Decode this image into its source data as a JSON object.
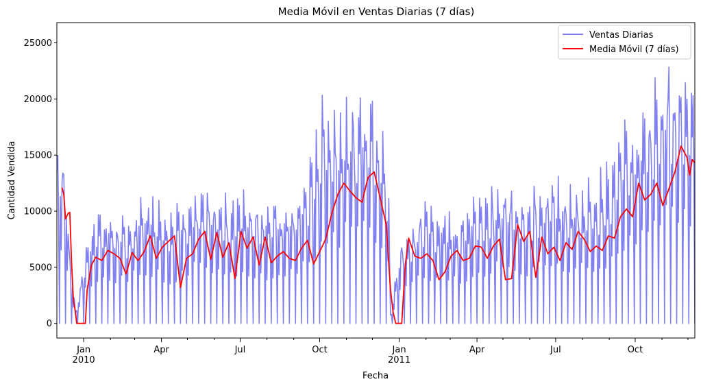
{
  "chart_data": {
    "type": "line",
    "title": "Media Móvil en Ventas Diarias (7 días)",
    "xlabel": "Fecha",
    "ylabel": "Cantidad Vendida",
    "xlim": [
      "2009-12-01",
      "2011-12-09"
    ],
    "ylim": [
      -1300,
      26800
    ],
    "yticks": [
      0,
      5000,
      10000,
      15000,
      20000,
      25000
    ],
    "xticks_major": [
      {
        "date": "2010-01-01",
        "label": "Jan",
        "year": "2010"
      },
      {
        "date": "2010-04-01",
        "label": "Apr",
        "year": ""
      },
      {
        "date": "2010-07-01",
        "label": "Jul",
        "year": ""
      },
      {
        "date": "2010-10-01",
        "label": "Oct",
        "year": ""
      },
      {
        "date": "2011-01-01",
        "label": "Jan",
        "year": "2011"
      },
      {
        "date": "2011-04-01",
        "label": "Apr",
        "year": ""
      },
      {
        "date": "2011-07-01",
        "label": "Jul",
        "year": ""
      },
      {
        "date": "2011-10-01",
        "label": "Oct",
        "year": ""
      }
    ],
    "xticks_minor": [
      "2010-02-01",
      "2010-03-01",
      "2010-05-01",
      "2010-06-01",
      "2010-08-01",
      "2010-09-01",
      "2010-11-01",
      "2010-12-01",
      "2011-02-01",
      "2011-03-01",
      "2011-05-01",
      "2011-06-01",
      "2011-08-01",
      "2011-09-01",
      "2011-11-01",
      "2011-12-01"
    ],
    "grid": false,
    "legend_position": "top-right",
    "series": [
      {
        "name": "Ventas Diarias",
        "color": "#8080f0",
        "style": "weekly-cycle",
        "level_points": [
          [
            "2009-12-01",
            13000
          ],
          [
            "2009-12-10",
            11000
          ],
          [
            "2009-12-17",
            4500
          ],
          [
            "2009-12-23",
            800
          ],
          [
            "2010-01-04",
            5500
          ],
          [
            "2010-01-20",
            7800
          ],
          [
            "2010-02-15",
            6800
          ],
          [
            "2010-03-15",
            8500
          ],
          [
            "2010-04-10",
            7500
          ],
          [
            "2010-05-10",
            9000
          ],
          [
            "2010-06-10",
            8000
          ],
          [
            "2010-07-10",
            8800
          ],
          [
            "2010-08-10",
            8000
          ],
          [
            "2010-09-05",
            8500
          ],
          [
            "2010-09-20",
            10500
          ],
          [
            "2010-10-05",
            14500
          ],
          [
            "2010-11-05",
            14500
          ],
          [
            "2010-11-25",
            16000
          ],
          [
            "2010-12-10",
            14000
          ],
          [
            "2010-12-20",
            9000
          ],
          [
            "2010-12-22",
            600
          ],
          [
            "2011-01-04",
            6000
          ],
          [
            "2011-02-01",
            7800
          ],
          [
            "2011-03-01",
            7200
          ],
          [
            "2011-04-01",
            8200
          ],
          [
            "2011-05-01",
            9000
          ],
          [
            "2011-06-01",
            8800
          ],
          [
            "2011-07-01",
            9200
          ],
          [
            "2011-08-01",
            9000
          ],
          [
            "2011-09-01",
            10200
          ],
          [
            "2011-09-20",
            13000
          ],
          [
            "2011-10-15",
            14500
          ],
          [
            "2011-11-10",
            17500
          ],
          [
            "2011-12-09",
            17000
          ]
        ]
      },
      {
        "name": "Media Móvil (7 días)",
        "color": "#ff0000",
        "points": [
          [
            "2009-12-07",
            12100
          ],
          [
            "2009-12-09",
            11500
          ],
          [
            "2009-12-11",
            9300
          ],
          [
            "2009-12-14",
            9800
          ],
          [
            "2009-12-16",
            9900
          ],
          [
            "2009-12-18",
            5500
          ],
          [
            "2009-12-20",
            2200
          ],
          [
            "2009-12-22",
            1200
          ],
          [
            "2009-12-24",
            0
          ],
          [
            "2010-01-03",
            0
          ],
          [
            "2010-01-05",
            3000
          ],
          [
            "2010-01-10",
            5200
          ],
          [
            "2010-01-15",
            5900
          ],
          [
            "2010-01-22",
            5600
          ],
          [
            "2010-01-29",
            6500
          ],
          [
            "2010-02-05",
            6200
          ],
          [
            "2010-02-12",
            5800
          ],
          [
            "2010-02-19",
            4400
          ],
          [
            "2010-02-26",
            6300
          ],
          [
            "2010-03-05",
            5600
          ],
          [
            "2010-03-12",
            6400
          ],
          [
            "2010-03-19",
            7800
          ],
          [
            "2010-03-26",
            5800
          ],
          [
            "2010-04-02",
            6800
          ],
          [
            "2010-04-09",
            7300
          ],
          [
            "2010-04-16",
            7800
          ],
          [
            "2010-04-23",
            3200
          ],
          [
            "2010-04-30",
            5800
          ],
          [
            "2010-05-07",
            6200
          ],
          [
            "2010-05-14",
            7500
          ],
          [
            "2010-05-21",
            8200
          ],
          [
            "2010-05-28",
            5700
          ],
          [
            "2010-06-04",
            8100
          ],
          [
            "2010-06-11",
            5900
          ],
          [
            "2010-06-18",
            7200
          ],
          [
            "2010-06-25",
            4000
          ],
          [
            "2010-07-02",
            8200
          ],
          [
            "2010-07-09",
            6700
          ],
          [
            "2010-07-16",
            7700
          ],
          [
            "2010-07-23",
            5200
          ],
          [
            "2010-07-30",
            7700
          ],
          [
            "2010-08-06",
            5400
          ],
          [
            "2010-08-13",
            6000
          ],
          [
            "2010-08-20",
            6400
          ],
          [
            "2010-08-27",
            5800
          ],
          [
            "2010-09-03",
            5600
          ],
          [
            "2010-09-10",
            6700
          ],
          [
            "2010-09-17",
            7400
          ],
          [
            "2010-09-24",
            5300
          ],
          [
            "2010-10-01",
            6400
          ],
          [
            "2010-10-08",
            7500
          ],
          [
            "2010-10-15",
            9800
          ],
          [
            "2010-10-22",
            11500
          ],
          [
            "2010-10-29",
            12500
          ],
          [
            "2010-11-05",
            11800
          ],
          [
            "2010-11-12",
            11200
          ],
          [
            "2010-11-19",
            10800
          ],
          [
            "2010-11-26",
            13000
          ],
          [
            "2010-12-03",
            13500
          ],
          [
            "2010-12-10",
            11200
          ],
          [
            "2010-12-17",
            8800
          ],
          [
            "2010-12-22",
            3000
          ],
          [
            "2010-12-25",
            1000
          ],
          [
            "2010-12-28",
            0
          ],
          [
            "2011-01-04",
            0
          ],
          [
            "2011-01-08",
            5200
          ],
          [
            "2011-01-12",
            7600
          ],
          [
            "2011-01-19",
            6000
          ],
          [
            "2011-01-26",
            5800
          ],
          [
            "2011-02-02",
            6200
          ],
          [
            "2011-02-09",
            5600
          ],
          [
            "2011-02-16",
            3900
          ],
          [
            "2011-02-23",
            4600
          ],
          [
            "2011-03-02",
            6000
          ],
          [
            "2011-03-09",
            6500
          ],
          [
            "2011-03-16",
            5600
          ],
          [
            "2011-03-23",
            5800
          ],
          [
            "2011-03-30",
            6900
          ],
          [
            "2011-04-06",
            6800
          ],
          [
            "2011-04-13",
            5800
          ],
          [
            "2011-04-20",
            6900
          ],
          [
            "2011-04-27",
            7500
          ],
          [
            "2011-05-04",
            3900
          ],
          [
            "2011-05-11",
            4000
          ],
          [
            "2011-05-18",
            8800
          ],
          [
            "2011-05-25",
            7300
          ],
          [
            "2011-06-01",
            8200
          ],
          [
            "2011-06-08",
            4100
          ],
          [
            "2011-06-15",
            7700
          ],
          [
            "2011-06-22",
            6200
          ],
          [
            "2011-06-29",
            6800
          ],
          [
            "2011-07-06",
            5600
          ],
          [
            "2011-07-13",
            7200
          ],
          [
            "2011-07-20",
            6600
          ],
          [
            "2011-07-27",
            8200
          ],
          [
            "2011-08-03",
            7500
          ],
          [
            "2011-08-10",
            6400
          ],
          [
            "2011-08-17",
            6900
          ],
          [
            "2011-08-24",
            6500
          ],
          [
            "2011-08-31",
            7800
          ],
          [
            "2011-09-07",
            7600
          ],
          [
            "2011-09-14",
            9500
          ],
          [
            "2011-09-21",
            10200
          ],
          [
            "2011-09-28",
            9500
          ],
          [
            "2011-10-05",
            12500
          ],
          [
            "2011-10-12",
            11000
          ],
          [
            "2011-10-19",
            11500
          ],
          [
            "2011-10-26",
            12500
          ],
          [
            "2011-11-02",
            10500
          ],
          [
            "2011-11-09",
            12000
          ],
          [
            "2011-11-16",
            13500
          ],
          [
            "2011-11-23",
            15800
          ],
          [
            "2011-11-30",
            14800
          ],
          [
            "2011-12-03",
            13200
          ],
          [
            "2011-12-06",
            14600
          ],
          [
            "2011-12-09",
            14300
          ]
        ]
      }
    ]
  }
}
